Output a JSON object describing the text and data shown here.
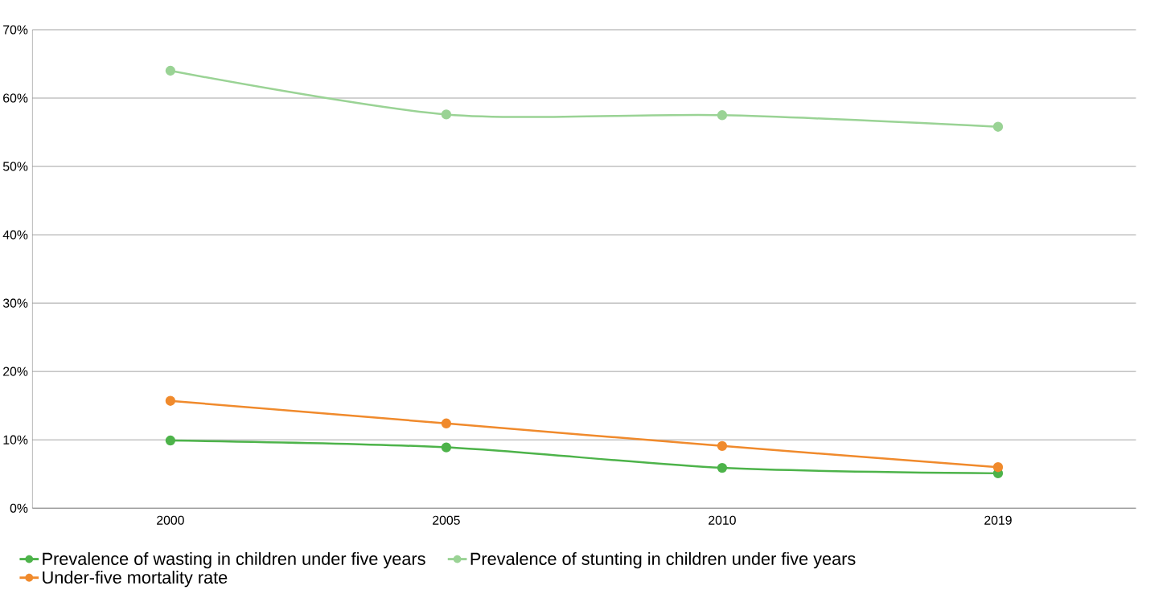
{
  "chart_data": {
    "type": "line",
    "categories": [
      "2000",
      "2005",
      "2010",
      "2019"
    ],
    "series": [
      {
        "name": "Prevalence of wasting in children under five years",
        "color": "#4db34a",
        "values": [
          9.9,
          8.9,
          5.9,
          5.1
        ]
      },
      {
        "name": "Prevalence of stunting in children under five years",
        "color": "#9ad395",
        "values": [
          64,
          57.6,
          57.5,
          55.8
        ]
      },
      {
        "name": "Under-five mortality rate",
        "color": "#f08a2c",
        "values": [
          15.7,
          12.4,
          9.1,
          6.0
        ]
      }
    ],
    "ylim": [
      0,
      70
    ],
    "yticks": [
      {
        "value": 0,
        "label": "0%"
      },
      {
        "value": 10,
        "label": "10%"
      },
      {
        "value": 20,
        "label": "20%"
      },
      {
        "value": 30,
        "label": "30%"
      },
      {
        "value": 40,
        "label": "40%"
      },
      {
        "value": 50,
        "label": "50%"
      },
      {
        "value": 60,
        "label": "60%"
      },
      {
        "value": 70,
        "label": "70%"
      }
    ],
    "grid": "y",
    "legend": "bottom",
    "marker": "circle",
    "line_style": "solid"
  }
}
